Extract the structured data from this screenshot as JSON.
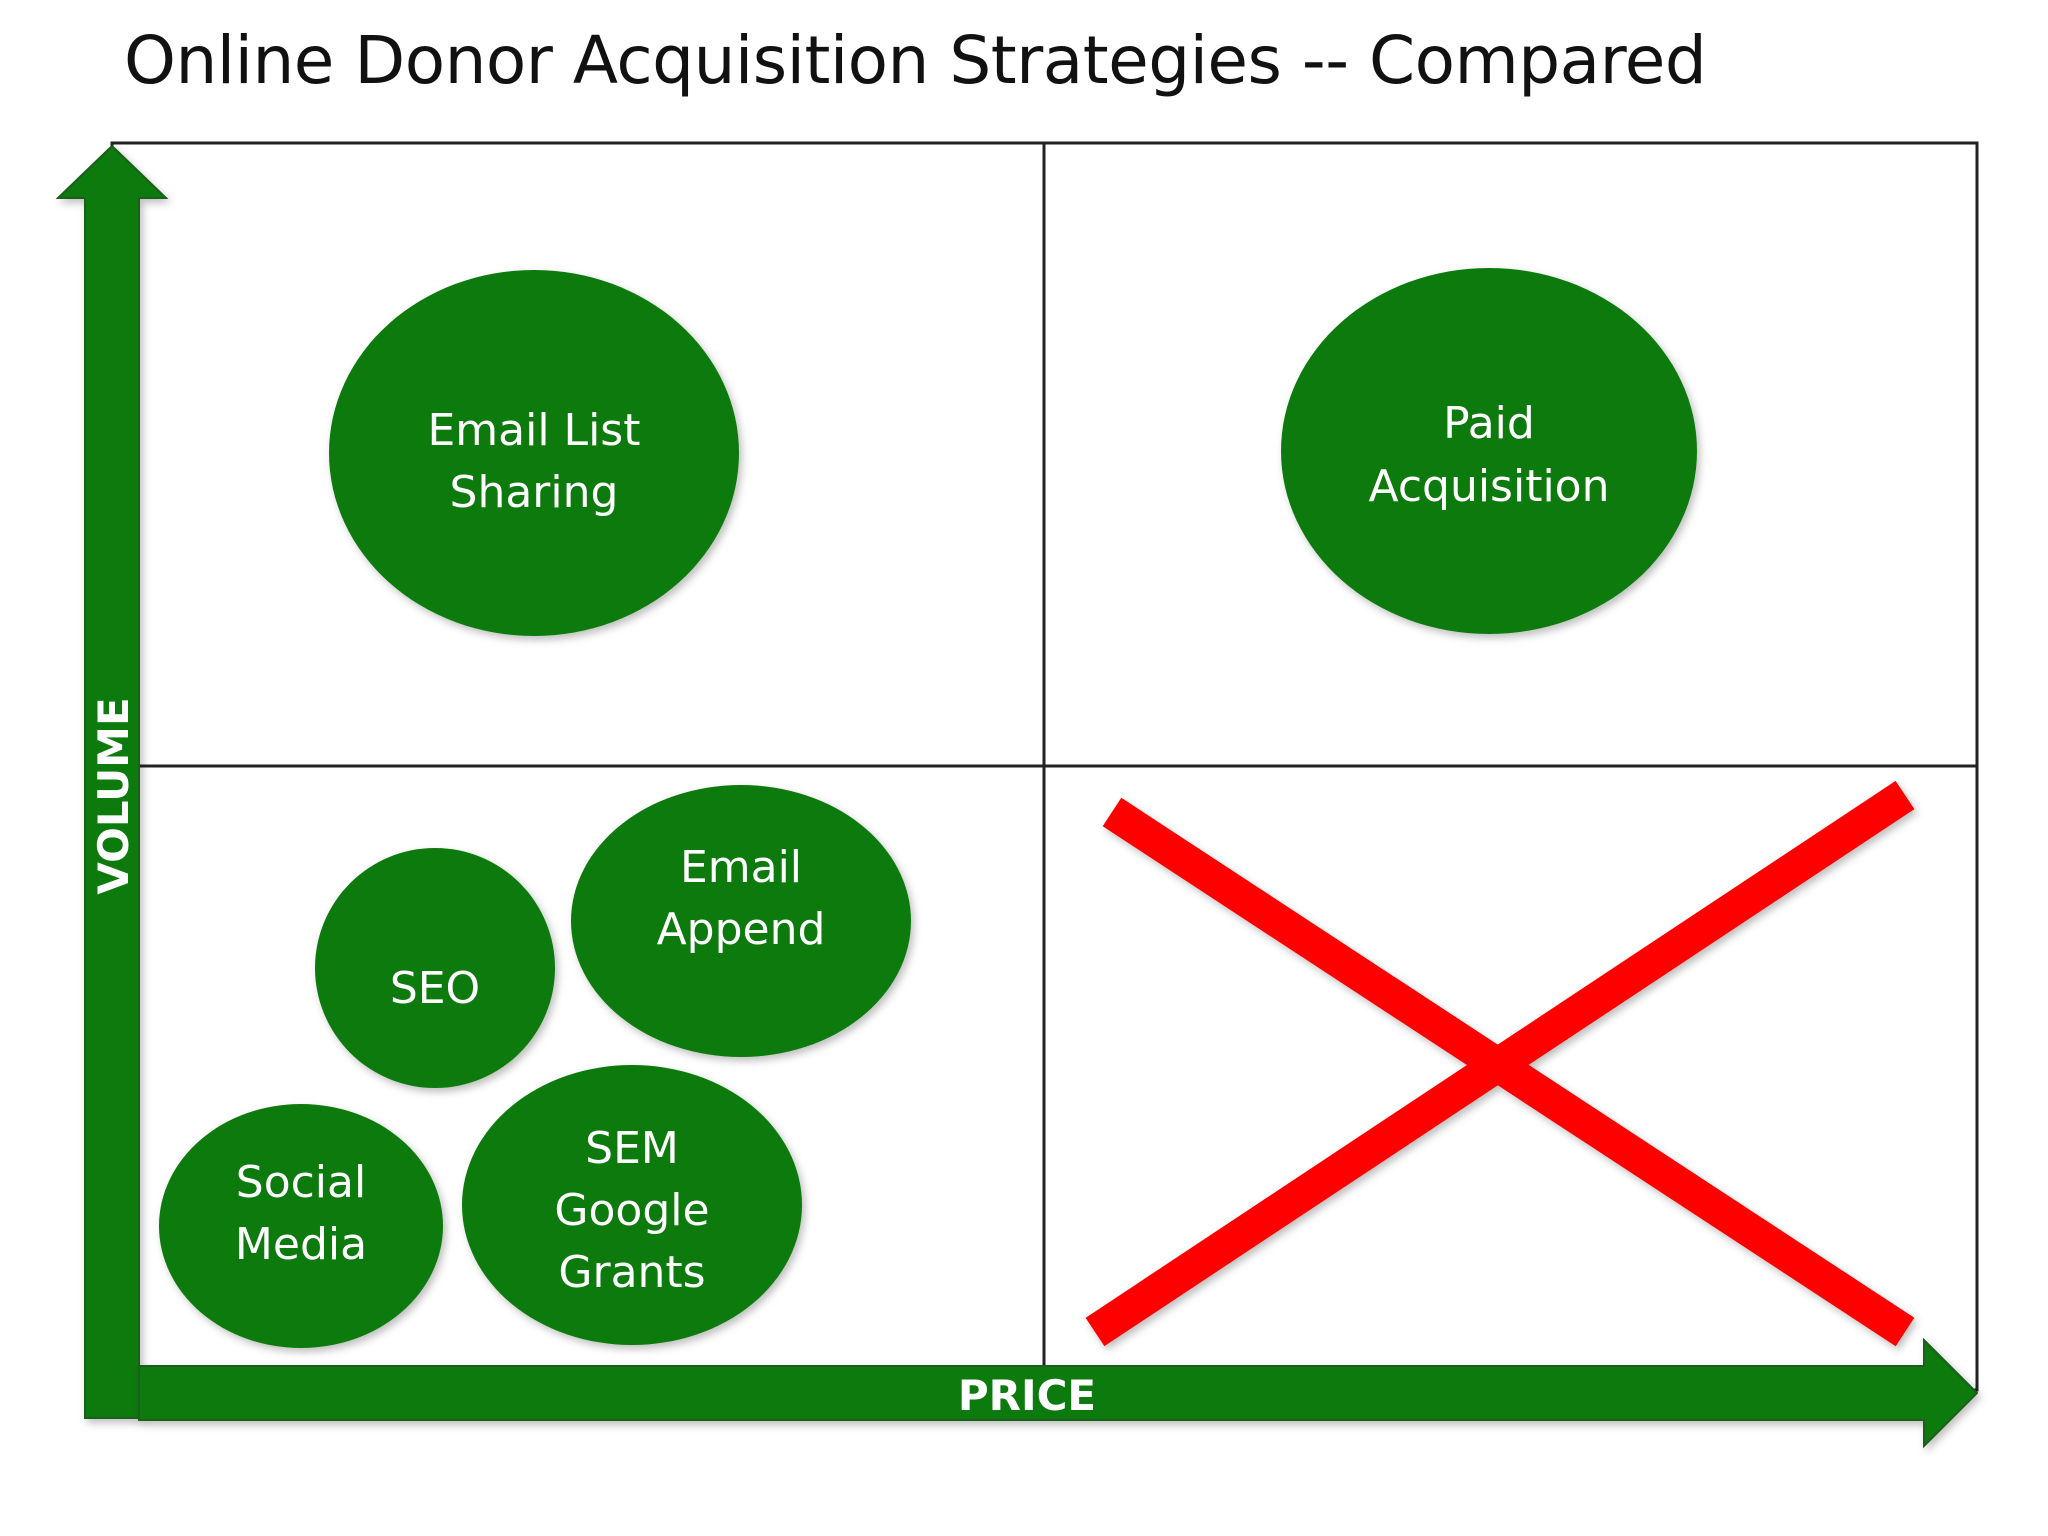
{
  "title": "Online Donor Acquisition Strategies -- Compared",
  "axes": {
    "y_label": "VOLUME",
    "x_label": "PRICE"
  },
  "colors": {
    "bubble": "#0a7a0a",
    "axis": "#0a7a0a",
    "cross": "#ff0000",
    "grid": "#222222"
  },
  "bubbles": {
    "email_list_sharing": {
      "lines": [
        "Email List",
        "Sharing"
      ]
    },
    "paid_acquisition": {
      "lines": [
        "Paid",
        "Acquisition"
      ]
    },
    "seo": {
      "lines": [
        "SEO"
      ]
    },
    "email_append": {
      "lines": [
        "Email",
        "Append"
      ]
    },
    "social_media": {
      "lines": [
        "Social",
        "Media"
      ]
    },
    "sem_google_grants": {
      "lines": [
        "SEM",
        "Google",
        "Grants"
      ]
    }
  }
}
